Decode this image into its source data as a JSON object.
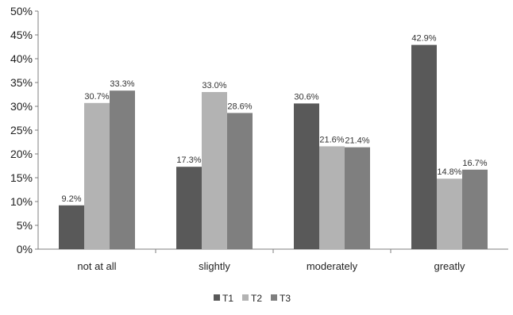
{
  "chart_data": {
    "type": "bar",
    "title": "",
    "xlabel": "",
    "ylabel": "",
    "categories": [
      "not at all",
      "slightly",
      "moderately",
      "greatly"
    ],
    "series": [
      {
        "name": "T1",
        "values": [
          9.2,
          17.3,
          30.6,
          42.9
        ],
        "labels": [
          "9.2%",
          "17.3%",
          "30.6%",
          "42.9%"
        ],
        "color": "#595959"
      },
      {
        "name": "T2",
        "values": [
          30.7,
          33.0,
          21.6,
          14.8
        ],
        "labels": [
          "30.7%",
          "33.0%",
          "21.6%",
          "14.8%"
        ],
        "color": "#b3b3b3"
      },
      {
        "name": "T3",
        "values": [
          33.3,
          28.6,
          21.4,
          16.7
        ],
        "labels": [
          "33.3%",
          "28.6%",
          "21.4%",
          "16.7%"
        ],
        "color": "#7f7f7f"
      }
    ],
    "ylim": [
      0,
      50
    ],
    "yticks": [
      0,
      5,
      10,
      15,
      20,
      25,
      30,
      35,
      40,
      45,
      50
    ],
    "ytick_labels": [
      "0%",
      "5%",
      "10%",
      "15%",
      "20%",
      "25%",
      "30%",
      "35%",
      "40%",
      "45%",
      "50%"
    ],
    "grid": false,
    "legend_position": "bottom"
  }
}
